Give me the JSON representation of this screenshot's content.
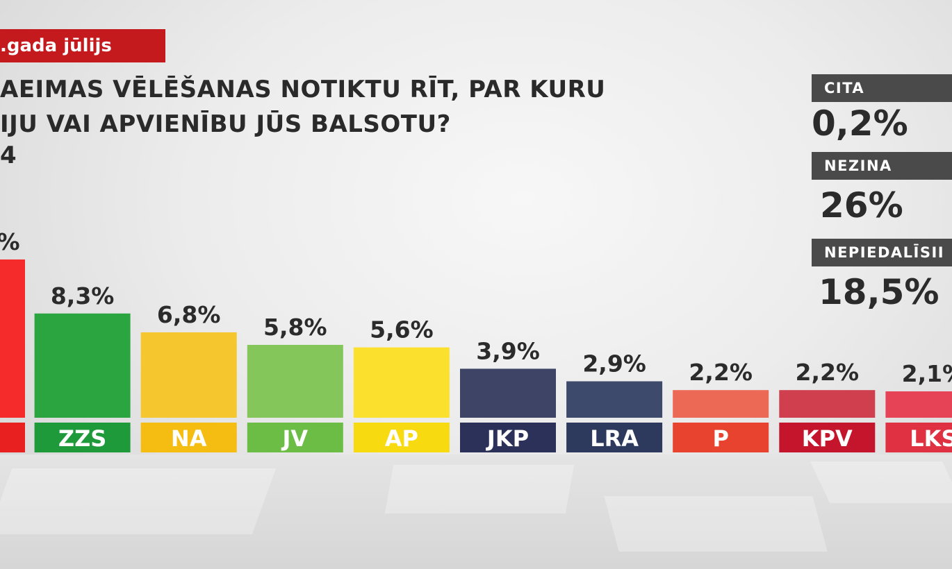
{
  "header": {
    "date_tag": ".gada jūlijs",
    "question_line1": "AEIMAS VĒLĒŠANAS NOTIKTU RĪT, PAR KURU",
    "question_line2": "IJU VAI APVIENĪBU JŪS BALSOTU?",
    "subnote": "4"
  },
  "side": {
    "items": [
      {
        "label": "CITA",
        "value": "0,2%"
      },
      {
        "label": "NEZINA",
        "value": "26%"
      },
      {
        "label": "NEPIEDALĪSII",
        "value": "18,5%"
      }
    ]
  },
  "chart_data": {
    "type": "bar",
    "title": "",
    "categories": [
      "",
      "ZZS",
      "NA",
      "JV",
      "AP",
      "JKP",
      "LRA",
      "P",
      "KPV",
      "LKS"
    ],
    "values": [
      null,
      8.3,
      6.8,
      5.8,
      5.6,
      3.9,
      2.9,
      2.2,
      2.2,
      2.1
    ],
    "value_labels": [
      "%",
      "8,3%",
      "6,8%",
      "5,8%",
      "5,6%",
      "3,9%",
      "2,9%",
      "2,2%",
      "2,2%",
      "2,1%"
    ],
    "colors": [
      "#f52b2b",
      "#2aa540",
      "#f5c62e",
      "#84c65a",
      "#fbe02e",
      "#3d4466",
      "#3e4a6c",
      "#ec6a55",
      "#cf3f4e",
      "#e64456"
    ],
    "label_colors": [
      "#e8201f",
      "#1f9a3b",
      "#f5bc12",
      "#6cbd45",
      "#f8da10",
      "#2b3158",
      "#2d3a5e",
      "#e8432e",
      "#c5152c",
      "#e03142"
    ],
    "first_bar_value_estimate": 12.6,
    "ylim": [
      0,
      14
    ],
    "xlabel": "",
    "ylabel": "",
    "grid": false,
    "legend": "none"
  }
}
